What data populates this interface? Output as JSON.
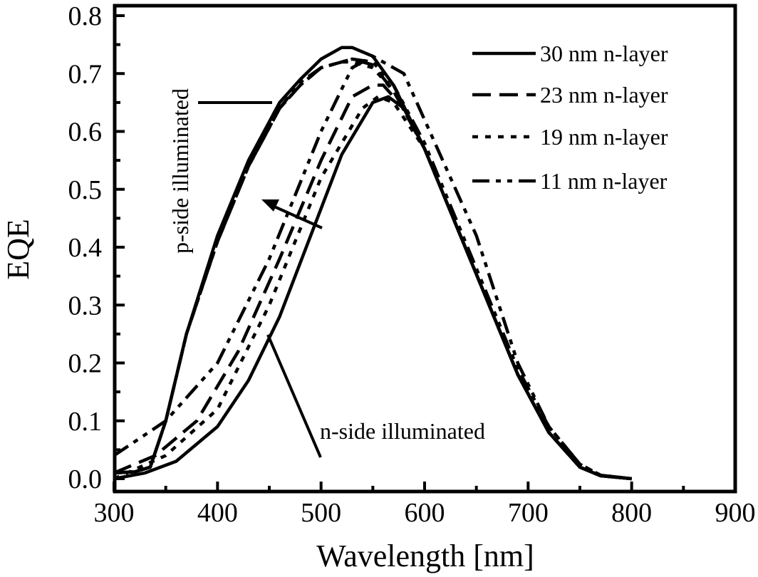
{
  "chart_data": {
    "type": "line",
    "xlabel": "Wavelength [nm]",
    "ylabel": "EQE",
    "xlim": [
      300,
      900
    ],
    "ylim": [
      0.0,
      0.8
    ],
    "xticks": [
      "300",
      "400",
      "500",
      "600",
      "700",
      "800",
      "900"
    ],
    "yticks": [
      "0.0",
      "0.1",
      "0.2",
      "0.3",
      "0.4",
      "0.5",
      "0.6",
      "0.7",
      "0.8"
    ],
    "grid": false,
    "legend_position": "top-right",
    "annotations": [
      "p-side illuminated",
      "n-side illuminated"
    ],
    "series": [
      {
        "name": "30 nm n-layer",
        "dash": "solid",
        "p_side": {
          "x": [
            300,
            320,
            335,
            350,
            370,
            400,
            430,
            460,
            480,
            500,
            520,
            530,
            550,
            570,
            600,
            630,
            660,
            690,
            720,
            750,
            770,
            800
          ],
          "y": [
            0.01,
            0.012,
            0.02,
            0.1,
            0.25,
            0.42,
            0.55,
            0.65,
            0.69,
            0.725,
            0.745,
            0.745,
            0.73,
            0.68,
            0.57,
            0.44,
            0.31,
            0.18,
            0.08,
            0.02,
            0.005,
            0.0
          ]
        },
        "n_side": {
          "x": [
            300,
            330,
            360,
            400,
            430,
            460,
            490,
            520,
            550,
            565,
            580,
            600,
            630,
            660,
            690,
            720,
            750,
            770,
            800
          ],
          "y": [
            0.0,
            0.01,
            0.03,
            0.09,
            0.17,
            0.28,
            0.42,
            0.56,
            0.65,
            0.66,
            0.64,
            0.57,
            0.44,
            0.31,
            0.18,
            0.08,
            0.02,
            0.005,
            0.0
          ]
        }
      },
      {
        "name": "23 nm n-layer",
        "dash": "dash",
        "p_side": {
          "x": [
            300,
            320,
            335,
            350,
            370,
            400,
            430,
            460,
            480,
            500,
            520,
            530,
            550,
            570,
            600,
            630,
            660,
            690,
            720,
            750,
            770,
            800
          ],
          "y": [
            0.01,
            0.012,
            0.02,
            0.1,
            0.25,
            0.41,
            0.54,
            0.64,
            0.68,
            0.71,
            0.72,
            0.725,
            0.715,
            0.67,
            0.57,
            0.44,
            0.31,
            0.18,
            0.08,
            0.02,
            0.005,
            0.0
          ]
        },
        "n_side": {
          "x": [
            300,
            340,
            380,
            420,
            460,
            500,
            530,
            550,
            560,
            580,
            600,
            630,
            660,
            690,
            720,
            750,
            770,
            800
          ],
          "y": [
            0.01,
            0.04,
            0.1,
            0.22,
            0.38,
            0.55,
            0.66,
            0.68,
            0.68,
            0.64,
            0.57,
            0.44,
            0.31,
            0.18,
            0.08,
            0.02,
            0.005,
            0.0
          ]
        }
      },
      {
        "name": "19 nm n-layer",
        "dash": "dot",
        "p_side": {
          "x": [
            300,
            320,
            335,
            350,
            370,
            400,
            430,
            460,
            480,
            500,
            520,
            530,
            550,
            570,
            600,
            630,
            660,
            690,
            720,
            750,
            770,
            800
          ],
          "y": [
            0.01,
            0.012,
            0.02,
            0.1,
            0.25,
            0.41,
            0.54,
            0.64,
            0.68,
            0.71,
            0.72,
            0.72,
            0.71,
            0.67,
            0.57,
            0.44,
            0.31,
            0.18,
            0.08,
            0.02,
            0.005,
            0.0
          ]
        },
        "n_side": {
          "x": [
            300,
            350,
            400,
            450,
            500,
            540,
            555,
            570,
            600,
            630,
            660,
            690,
            720,
            750,
            770,
            800
          ],
          "y": [
            0.0,
            0.04,
            0.12,
            0.3,
            0.52,
            0.64,
            0.66,
            0.65,
            0.57,
            0.44,
            0.31,
            0.18,
            0.08,
            0.02,
            0.005,
            0.0
          ]
        }
      },
      {
        "name": "11 nm n-layer",
        "dash": "dashdotdot",
        "p_side": {
          "x": [
            300,
            320,
            335,
            350,
            370,
            400,
            430,
            460,
            480,
            500,
            520,
            530,
            550,
            570,
            600,
            630,
            660,
            690,
            720,
            750,
            770,
            800
          ],
          "y": [
            0.01,
            0.012,
            0.02,
            0.1,
            0.25,
            0.41,
            0.54,
            0.64,
            0.685,
            0.71,
            0.72,
            0.725,
            0.72,
            0.68,
            0.58,
            0.45,
            0.32,
            0.19,
            0.09,
            0.025,
            0.006,
            0.0
          ]
        },
        "n_side": {
          "x": [
            300,
            350,
            400,
            450,
            500,
            530,
            550,
            580,
            600,
            650,
            690,
            720,
            750,
            770,
            800
          ],
          "y": [
            0.04,
            0.1,
            0.2,
            0.38,
            0.6,
            0.71,
            0.73,
            0.7,
            0.62,
            0.42,
            0.2,
            0.09,
            0.025,
            0.006,
            0.0
          ]
        }
      }
    ]
  }
}
